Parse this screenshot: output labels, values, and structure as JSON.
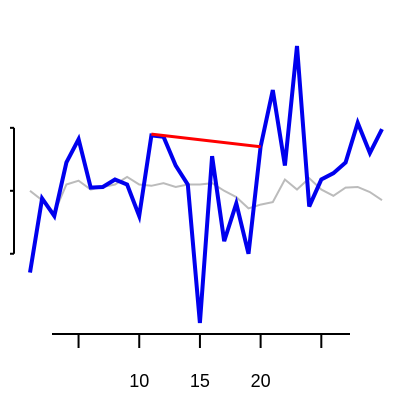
{
  "chart_data": {
    "type": "line",
    "x": [
      1,
      2,
      3,
      4,
      5,
      6,
      7,
      8,
      9,
      10,
      11,
      12,
      13,
      14,
      15,
      16,
      17,
      18,
      19,
      20,
      21,
      22,
      23,
      24,
      25,
      26,
      27,
      28,
      29,
      30
    ],
    "series": [
      {
        "color": "#0000ee",
        "values": [
          -1.3,
          -0.12,
          -0.4,
          0.45,
          0.82,
          0.05,
          0.06,
          0.18,
          0.1,
          -0.4,
          0.88,
          0.86,
          0.4,
          0.1,
          -2.1,
          0.55,
          -0.8,
          -0.2,
          -1.0,
          0.7,
          1.6,
          0.4,
          2.3,
          -0.25,
          0.18,
          0.28,
          0.45,
          1.08,
          0.6,
          0.98
        ]
      },
      {
        "color": "#bbbbbb",
        "values": [
          0.0,
          -0.15,
          -0.35,
          0.1,
          0.16,
          0.02,
          0.06,
          0.1,
          0.22,
          0.1,
          0.08,
          0.12,
          0.06,
          0.1,
          0.1,
          0.12,
          0.0,
          -0.1,
          -0.28,
          -0.22,
          -0.18,
          0.18,
          0.02,
          0.2,
          0.02,
          -0.08,
          0.05,
          0.06,
          -0.02,
          -0.15
        ]
      }
    ],
    "segment": {
      "color": "#ff0000",
      "x0": 11,
      "y0": 0.9,
      "x1": 20,
      "y1": 0.7
    },
    "xaxis": {
      "ticks": [
        5,
        10,
        15,
        20,
        25
      ],
      "labels": [
        "",
        "10",
        "15",
        "20",
        ""
      ]
    },
    "yaxis": {
      "ticks": [
        -1,
        0,
        1
      ]
    },
    "xlim": [
      1,
      30
    ],
    "ylim": [
      -2.1,
      2.3
    ],
    "grid": false
  }
}
